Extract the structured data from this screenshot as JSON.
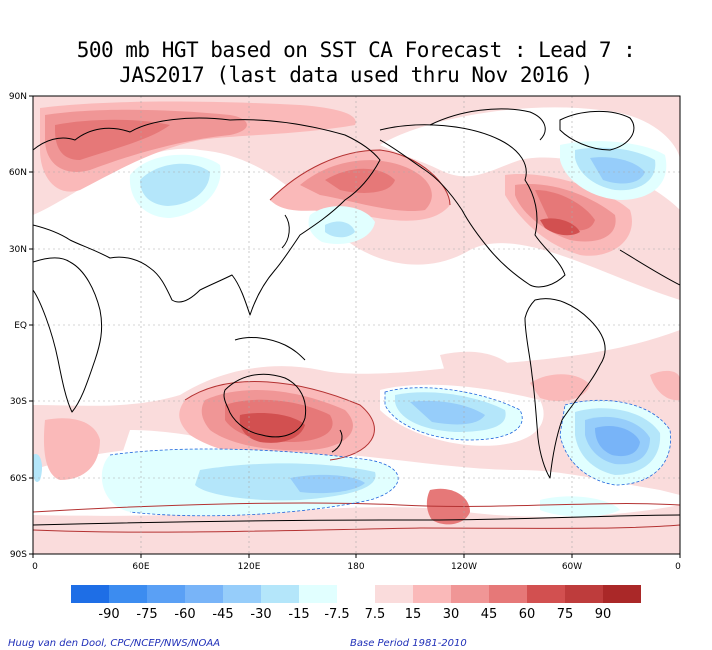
{
  "title": {
    "line1": "500 mb HGT based on SST CA Forecast : Lead 7 :",
    "line2": "JAS2017 (last data used thru Nov 2016 )"
  },
  "axes": {
    "lat_labels": [
      "90N",
      "60N",
      "30N",
      "EQ",
      "30S",
      "60S",
      "90S"
    ],
    "lon_labels": [
      "0",
      "60E",
      "120E",
      "180",
      "120W",
      "60W",
      "0"
    ]
  },
  "colorbar": {
    "labels": [
      "-90",
      "-75",
      "-60",
      "-45",
      "-30",
      "-15",
      "-7.5",
      "7.5",
      "15",
      "30",
      "45",
      "60",
      "75",
      "90"
    ],
    "colors": [
      "#1e6ee6",
      "#3c8cf0",
      "#5aa0f5",
      "#78b4f8",
      "#96cdfa",
      "#b4e6fa",
      "#e1ffff",
      "#ffffff",
      "#fadcdc",
      "#fab9b9",
      "#f09696",
      "#e67878",
      "#d25050",
      "#be3c3c",
      "#aa2828"
    ]
  },
  "credits": {
    "left": "Huug van den Dool, CPC/NCEP/NWS/NOAA",
    "right": "Base Period 1981-2010"
  },
  "map": {
    "background_color": "#fadcdc",
    "land_outline_color": "#000000",
    "grid_color": "#aaaaaa"
  }
}
